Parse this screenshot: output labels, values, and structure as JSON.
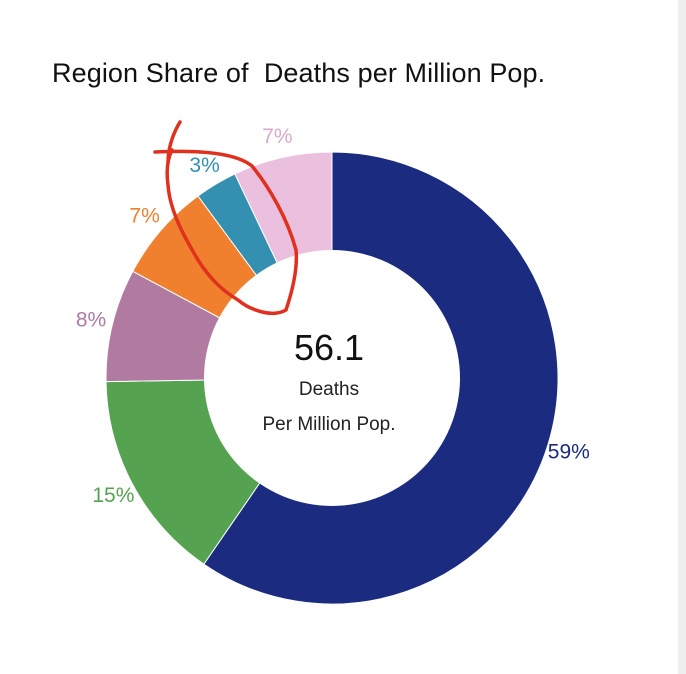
{
  "chart_data": {
    "type": "pie",
    "title": "Region Share of  Deaths per Million Pop.",
    "center_value": "56.1",
    "center_line1": "Deaths",
    "center_line2": "Per Million Pop.",
    "slices": [
      {
        "value": 59,
        "label": "59%",
        "color": "#1a2b80",
        "label_color": "#1a2b80"
      },
      {
        "value": 15,
        "label": "15%",
        "color": "#55a250",
        "label_color": "#55a250"
      },
      {
        "value": 8,
        "label": "8%",
        "color": "#b07aa1",
        "label_color": "#b07aa1"
      },
      {
        "value": 7,
        "label": "7%",
        "color": "#f0802d",
        "label_color": "#f0802d"
      },
      {
        "value": 3,
        "label": "3%",
        "color": "#3490b0",
        "label_color": "#3490b0"
      },
      {
        "value": 7,
        "label": "7%",
        "color": "#ebc0df",
        "label_color": "#d9a9cc"
      }
    ],
    "annotation_color": "#e0301e"
  }
}
